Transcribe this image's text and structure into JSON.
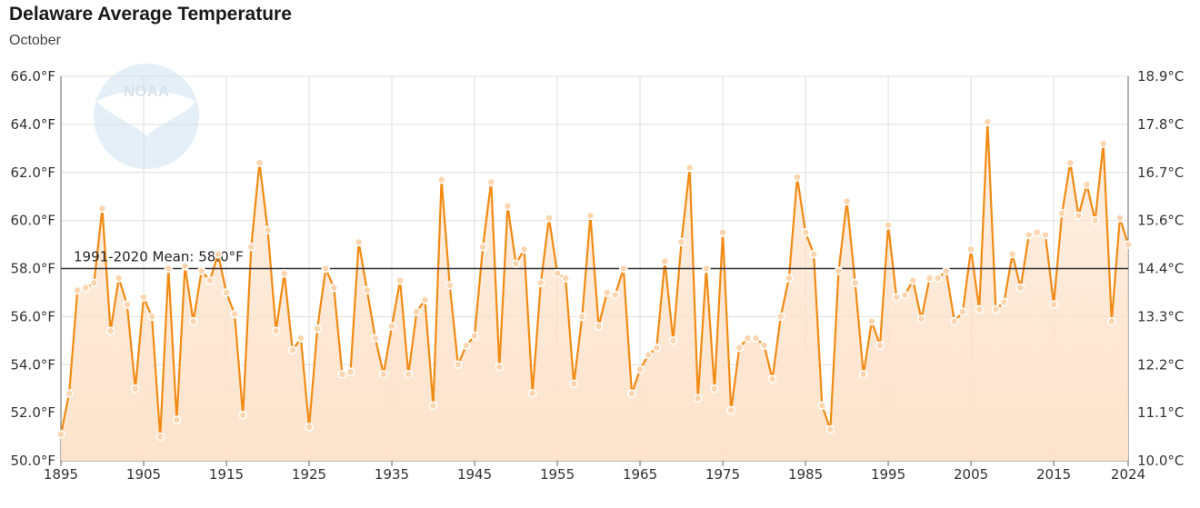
{
  "header": {
    "title": "Delaware Average Temperature",
    "subtitle": "October"
  },
  "logo": {
    "text": "NOAA"
  },
  "colors": {
    "line": "#f28b14",
    "area_top": "#fde3cc",
    "area_bottom": "#fbe9d9",
    "grid": "#dddddd",
    "mean_line": "#333333",
    "logo": "#cfe2f3"
  },
  "chart_data": {
    "type": "area",
    "title": "Delaware Average Temperature",
    "subtitle": "October",
    "xlim": [
      1895,
      2024
    ],
    "ylim": [
      50.0,
      66.0
    ],
    "x_ticks": [
      "1895",
      "1905",
      "1915",
      "1925",
      "1935",
      "1945",
      "1955",
      "1965",
      "1975",
      "1985",
      "1995",
      "2005",
      "2015",
      "2024"
    ],
    "y_ticks_left": [
      "50.0°F",
      "52.0°F",
      "54.0°F",
      "56.0°F",
      "58.0°F",
      "60.0°F",
      "62.0°F",
      "64.0°F",
      "66.0°F"
    ],
    "y_ticks_right": [
      "10.0°C",
      "11.1°C",
      "12.2°C",
      "13.3°C",
      "14.4°C",
      "15.6°C",
      "16.7°C",
      "17.8°C",
      "18.9°C"
    ],
    "grid": true,
    "mean": {
      "label": "1991-2020 Mean: 58.0°F",
      "value": 58.0
    },
    "series": [
      {
        "x": [
          1895,
          1896,
          1897,
          1898,
          1899,
          1900,
          1901,
          1902,
          1903,
          1904,
          1905,
          1906,
          1907,
          1908,
          1909,
          1910,
          1911,
          1912,
          1913,
          1914,
          1915,
          1916,
          1917,
          1918,
          1919,
          1920,
          1921,
          1922,
          1923,
          1924,
          1925,
          1926,
          1927,
          1928,
          1929,
          1930,
          1931,
          1932,
          1933,
          1934,
          1935,
          1936,
          1937,
          1938,
          1939,
          1940,
          1941,
          1942,
          1943,
          1944,
          1945,
          1946,
          1947,
          1948,
          1949,
          1950,
          1951,
          1952,
          1953,
          1954,
          1955,
          1956,
          1957,
          1958,
          1959,
          1960,
          1961,
          1962,
          1963,
          1964,
          1965,
          1966,
          1967,
          1968,
          1969,
          1970,
          1971,
          1972,
          1973,
          1974,
          1975,
          1976,
          1977,
          1978,
          1979,
          1980,
          1981,
          1982,
          1983,
          1984,
          1985,
          1986,
          1987,
          1988,
          1989,
          1990,
          1991,
          1992,
          1993,
          1994,
          1995,
          1996,
          1997,
          1998,
          1999,
          2000,
          2001,
          2002,
          2003,
          2004,
          2005,
          2006,
          2007,
          2008,
          2009,
          2010,
          2011,
          2012,
          2013,
          2014,
          2015,
          2016,
          2017,
          2018,
          2019,
          2020,
          2021,
          2022,
          2023,
          2024
        ],
        "values": [
          51.1,
          52.8,
          57.1,
          57.2,
          57.4,
          60.5,
          55.4,
          57.6,
          56.5,
          53.0,
          56.8,
          56.0,
          51.0,
          58.0,
          51.7,
          58.1,
          55.8,
          57.9,
          57.5,
          58.6,
          57.0,
          56.1,
          51.9,
          58.9,
          62.4,
          59.6,
          55.4,
          57.8,
          54.6,
          55.1,
          51.4,
          55.5,
          58.0,
          57.2,
          53.6,
          53.7,
          59.1,
          57.1,
          55.1,
          53.6,
          55.6,
          57.5,
          53.6,
          56.2,
          56.7,
          52.3,
          61.7,
          57.3,
          54.0,
          54.8,
          55.2,
          58.9,
          61.6,
          53.9,
          60.6,
          58.2,
          58.8,
          52.8,
          57.4,
          60.1,
          57.8,
          57.6,
          53.2,
          56.0,
          60.2,
          55.6,
          57.0,
          56.9,
          58.0,
          52.8,
          53.8,
          54.4,
          54.7,
          58.3,
          55.0,
          59.1,
          62.2,
          52.6,
          58.0,
          53.0,
          59.5,
          52.1,
          54.7,
          55.1,
          55.1,
          54.8,
          53.4,
          56.0,
          57.6,
          61.8,
          59.5,
          58.6,
          52.3,
          51.3,
          57.9,
          60.8,
          57.4,
          53.6,
          55.8,
          54.8,
          59.8,
          56.8,
          56.9,
          57.5,
          55.9,
          57.6,
          57.6,
          57.9,
          55.8,
          56.2,
          58.8,
          56.3,
          64.1,
          56.3,
          56.6,
          58.6,
          57.2,
          59.4,
          59.5,
          59.4,
          56.5,
          60.3,
          62.4,
          60.2,
          61.5,
          60.0,
          63.2,
          55.8,
          60.1,
          59.0
        ]
      }
    ]
  }
}
